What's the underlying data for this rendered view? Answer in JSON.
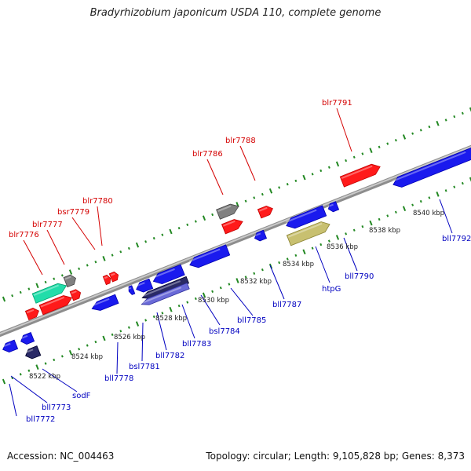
{
  "title": "Bradyrhizobium japonicum USDA 110, complete genome",
  "footer": {
    "accession": "Accession: NC_004463",
    "summary": "Topology: circular; Length: 9,105,828 bp; Genes: 8,373"
  },
  "colors": {
    "forward_gene": "#ff1a1a",
    "reverse_gene": "#1a1aee",
    "pseudo_gene": "#808080",
    "rna_gene": "#22ddaa",
    "highlight_gene": "#c8c070",
    "dark_gene": "#2a2a66",
    "genome_line": "#9a9a9a",
    "tick": "#228822",
    "label_forward": "#d40000",
    "label_reverse": "#0000c0"
  },
  "scale_labels": [
    "8522 kbp",
    "8524 kbp",
    "8526 kbp",
    "8528 kbp",
    "8530 kbp",
    "8532 kbp",
    "8534 kbp",
    "8536 kbp",
    "8538 kbp",
    "8540 kbp"
  ],
  "forward_labels": [
    "blr7776",
    "blr7777",
    "bsr7779",
    "blr7780",
    "blr7786",
    "blr7788",
    "blr7791"
  ],
  "reverse_labels": [
    "bll7772",
    "bll7773",
    "sodF",
    "bll7778",
    "bsl7781",
    "bll7782",
    "bll7783",
    "bsl7784",
    "bll7785",
    "bll7787",
    "htpG",
    "bll7790",
    "bll7792"
  ]
}
